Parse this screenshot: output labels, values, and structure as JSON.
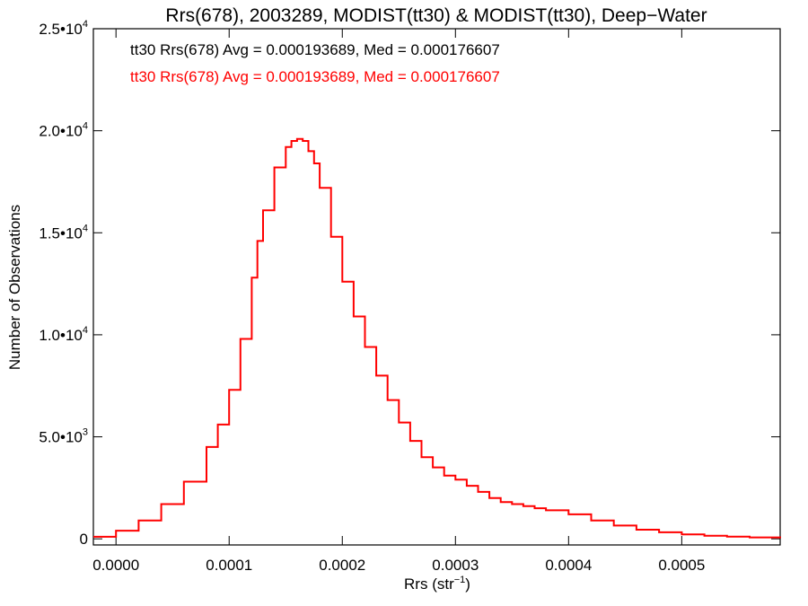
{
  "chart_data": {
    "type": "line",
    "title": "Rrs(678), 2003289, MODIST(tt30) & MODIST(tt30), Deep−Water",
    "xlabel": "Rrs (str",
    "xlabel_sup": "−1",
    "xlabel_end": ")",
    "ylabel": "Number of Observations",
    "xlim": [
      -2e-05,
      0.000587
    ],
    "ylim": [
      -300,
      25000
    ],
    "grid": false,
    "x_ticks": [
      {
        "value": 0.0,
        "label": "0.0000"
      },
      {
        "value": 0.0001,
        "label": "0.0001"
      },
      {
        "value": 0.0002,
        "label": "0.0002"
      },
      {
        "value": 0.0003,
        "label": "0.0003"
      },
      {
        "value": 0.0004,
        "label": "0.0004"
      },
      {
        "value": 0.0005,
        "label": "0.0005"
      }
    ],
    "y_ticks": [
      {
        "value": 0,
        "label": "0",
        "exp": ""
      },
      {
        "value": 5000,
        "label": "5.0•10",
        "exp": "3"
      },
      {
        "value": 10000,
        "label": "1.0•10",
        "exp": "4"
      },
      {
        "value": 15000,
        "label": "1.5•10",
        "exp": "4"
      },
      {
        "value": 20000,
        "label": "2.0•10",
        "exp": "4"
      },
      {
        "value": 25000,
        "label": "2.5•10",
        "exp": "4"
      }
    ],
    "legend_placement": "top-left",
    "legend": [
      {
        "text": "tt30 Rrs(678) Avg = 0.000193689, Med = 0.000176607",
        "color": "#000000"
      },
      {
        "text": "tt30 Rrs(678) Avg = 0.000193689, Med = 0.000176607",
        "color": "#ff0000"
      }
    ],
    "series": [
      {
        "color": "#ff0000",
        "x": [
          -2e-05,
          0.0,
          2e-05,
          4e-05,
          6e-05,
          8e-05,
          9e-05,
          0.0001,
          0.00011,
          0.00012,
          0.000125,
          0.00013,
          0.00014,
          0.00015,
          0.000155,
          0.00016,
          0.000165,
          0.00017,
          0.000175,
          0.00018,
          0.00019,
          0.0002,
          0.00021,
          0.00022,
          0.00023,
          0.00024,
          0.00025,
          0.00026,
          0.00027,
          0.00028,
          0.00029,
          0.0003,
          0.00031,
          0.00032,
          0.00033,
          0.00034,
          0.00035,
          0.00036,
          0.00037,
          0.00038,
          0.0004,
          0.00042,
          0.00044,
          0.00046,
          0.00048,
          0.0005,
          0.00052,
          0.00054,
          0.00056,
          0.000587
        ],
        "values": [
          100,
          400,
          900,
          1700,
          2800,
          4500,
          5600,
          7300,
          9800,
          12800,
          14600,
          16100,
          18200,
          19200,
          19500,
          19600,
          19500,
          19000,
          18400,
          17200,
          14800,
          12600,
          10900,
          9400,
          8000,
          6800,
          5700,
          4800,
          4000,
          3500,
          3100,
          2900,
          2600,
          2300,
          2000,
          1800,
          1700,
          1600,
          1500,
          1400,
          1200,
          900,
          650,
          450,
          320,
          220,
          150,
          110,
          70,
          30
        ]
      }
    ]
  }
}
